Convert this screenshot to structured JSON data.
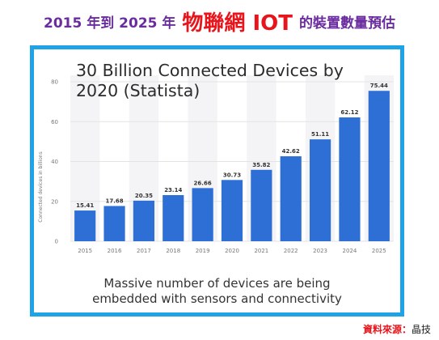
{
  "header": {
    "part_a": "2015 年到 2025 年",
    "part_b": "物聯網 IOT",
    "part_c": "的裝置數量預估"
  },
  "caption": {
    "line1": "Massive number of devices are being",
    "line2": "embedded with sensors and connectivity"
  },
  "source": {
    "label": "資料來源：",
    "value": "晶技"
  },
  "colors": {
    "bar": "#2e6fd6",
    "frame": "#1ea3e6",
    "title_purple": "#6a2c9e",
    "title_red": "#e8141b"
  },
  "chart_data": {
    "type": "bar",
    "title": "30 Billion Connected Devices by 2020 (Statista)",
    "ylabel": "Connected devices in billions",
    "xlabel": "",
    "categories": [
      "2015",
      "2016",
      "2017",
      "2018",
      "2019",
      "2020",
      "2021",
      "2022",
      "2023",
      "2024",
      "2025"
    ],
    "values": [
      15.41,
      17.68,
      20.35,
      23.14,
      26.66,
      30.73,
      35.82,
      42.62,
      51.11,
      62.12,
      75.44
    ],
    "ylim": [
      0,
      80
    ],
    "yticks": [
      0,
      20,
      40,
      60,
      80
    ],
    "grid": true
  }
}
